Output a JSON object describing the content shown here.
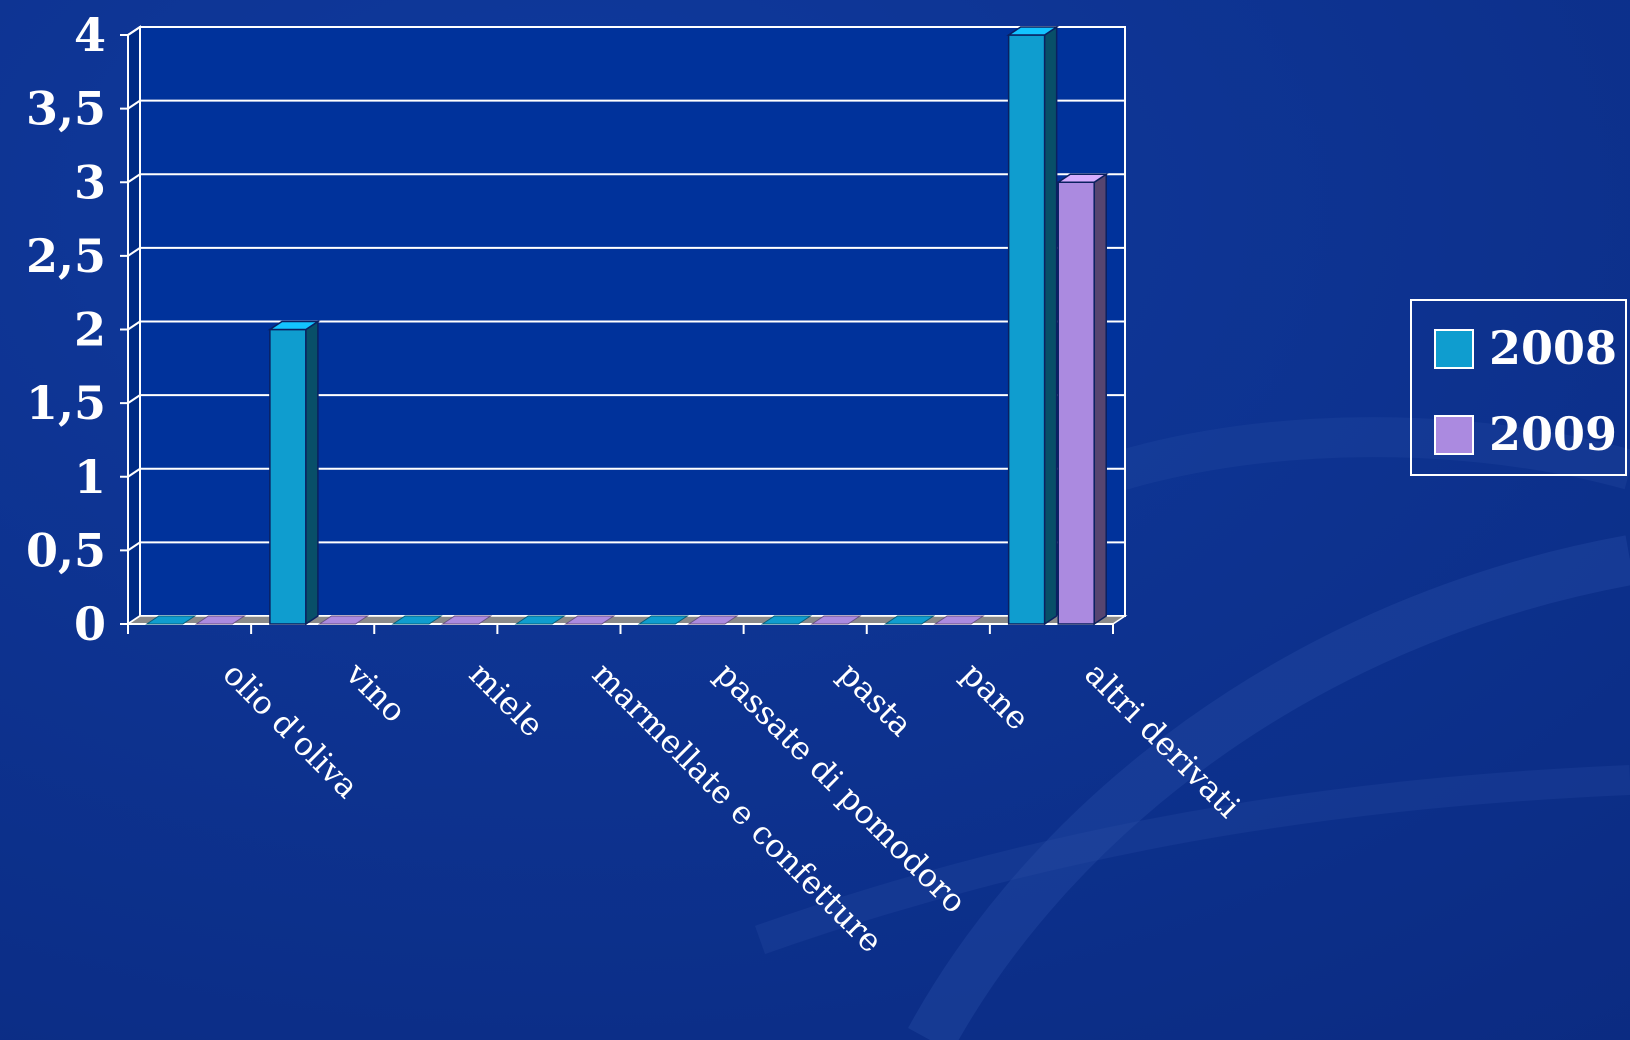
{
  "chart_data": {
    "type": "bar",
    "title": "",
    "xlabel": "",
    "ylabel": "",
    "ylim": [
      0,
      4
    ],
    "yticks": [
      "0",
      "0,5",
      "1",
      "1,5",
      "2",
      "2,5",
      "3",
      "3,5",
      "4"
    ],
    "grid": true,
    "legend_position": "right",
    "categories": [
      "olio d'oliva",
      "vino",
      "miele",
      "marmellate e confetture",
      "passate di pomodoro",
      "pasta",
      "pane",
      "altri derivati"
    ],
    "series": [
      {
        "name": "2008",
        "color": "#0f9dcf",
        "values": [
          0,
          2,
          0,
          0,
          0,
          0,
          0,
          4
        ]
      },
      {
        "name": "2009",
        "color": "#ab8ae0",
        "values": [
          0,
          0,
          0,
          0,
          0,
          0,
          0,
          3
        ]
      }
    ]
  },
  "colors": {
    "background": "#0d2e8c",
    "plot_background": "#00329b",
    "grid": "#ffffff",
    "text": "#ffffff"
  }
}
